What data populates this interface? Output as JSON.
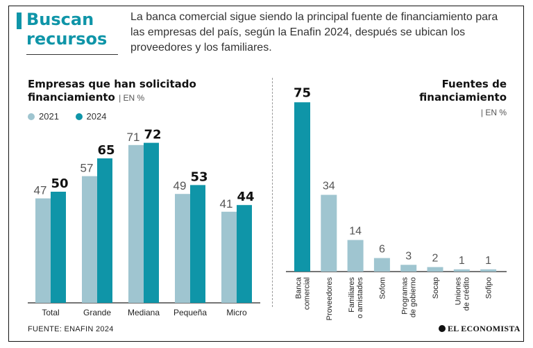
{
  "header": {
    "title": "Buscan recursos",
    "intro": "La banca comercial sigue siendo la principal fuente de financiamiento para las empresas del país, según la Enafin 2024, después se ubican los proveedores y los familiares."
  },
  "left_chart": {
    "title": "Empresas que han solicitado financiamiento",
    "unit": "| EN %",
    "legend": [
      "2021",
      "2024"
    ]
  },
  "right_chart": {
    "title": "Fuentes de financiamiento",
    "unit": "| EN %"
  },
  "footer": {
    "source": "FUENTE: ENAFIN 2024",
    "logo": "EL ECONOMISTA"
  },
  "colors": {
    "accent": "#0f95a8",
    "series_2021": "#9fc5d0",
    "series_2024": "#0f95a8",
    "sources_bar": "#9fc5d0"
  },
  "chart_data": [
    {
      "type": "bar",
      "title": "Empresas que han solicitado financiamiento",
      "unit": "EN %",
      "categories": [
        "Total",
        "Grande",
        "Mediana",
        "Pequeña",
        "Micro"
      ],
      "series": [
        {
          "name": "2021",
          "values": [
            47,
            57,
            71,
            49,
            41
          ]
        },
        {
          "name": "2024",
          "values": [
            50,
            65,
            72,
            53,
            44
          ]
        }
      ],
      "ylim": [
        0,
        100
      ],
      "legend": "top-left",
      "grid": false
    },
    {
      "type": "bar",
      "title": "Fuentes de financiamiento",
      "unit": "EN %",
      "categories": [
        "Banca comercial",
        "Proveedores",
        "Familiares o amistades",
        "Sofom",
        "Programas de gobierno",
        "Socap",
        "Uniones de crédito",
        "Sofipo"
      ],
      "values": [
        75,
        34,
        14,
        6,
        3,
        2,
        1,
        1
      ],
      "ylim": [
        0,
        100
      ],
      "grid": false
    }
  ]
}
